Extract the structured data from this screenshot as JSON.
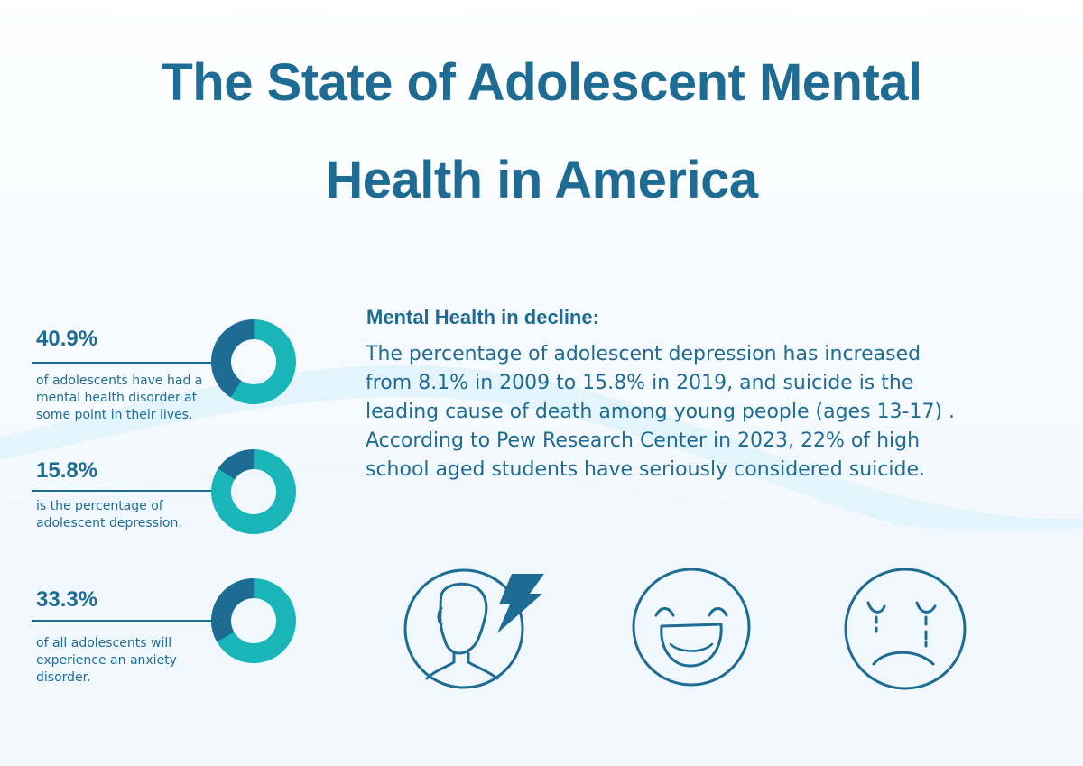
{
  "title": {
    "line1": "The State of Adolescent Mental",
    "line2": "Health in America"
  },
  "stats": [
    {
      "value": "40.9%",
      "percent": 40.9,
      "description": [
        "of adolescents have had a",
        "mental health disorder at",
        "some point in their lives."
      ]
    },
    {
      "value": "15.8%",
      "percent": 15.8,
      "description": [
        "is the percentage of",
        "adolescent depression."
      ]
    },
    {
      "value": "33.3%",
      "percent": 33.3,
      "description": [
        "of all adolescents will",
        "experience an anxiety",
        "disorder."
      ]
    }
  ],
  "section": {
    "heading": "Mental Health in decline:",
    "body": [
      "The percentage of adolescent depression has increased",
      "from 8.1% in 2009 to 15.8% in 2019, and suicide is the",
      "leading cause of death among young people (ages 13-17) .",
      "According to Pew Research Center in 2023, 22% of high",
      "school aged students have seriously considered suicide."
    ]
  },
  "icons": [
    "stressed-person-icon",
    "laughing-face-icon",
    "crying-sad-face-icon"
  ],
  "colors": {
    "primary": "#1e6b94",
    "accent": "#1ab5b8",
    "background_wave": "#e3f4fa"
  }
}
